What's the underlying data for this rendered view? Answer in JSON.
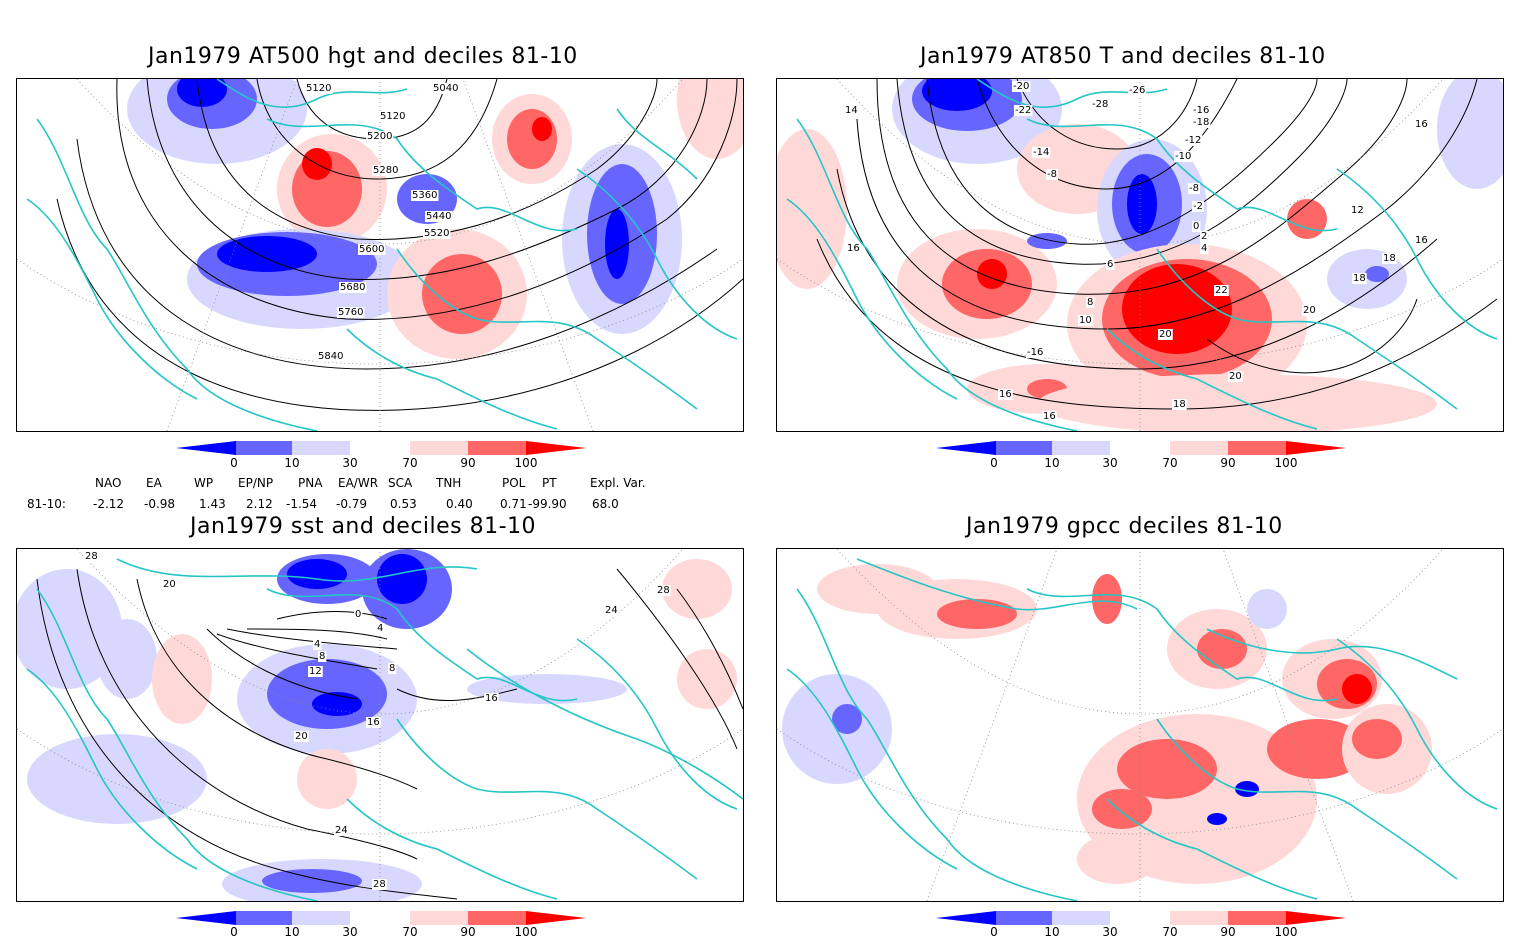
{
  "panels": [
    {
      "title": "Jan1979 AT500 hgt and deciles 81-10",
      "contours": [
        "5040",
        "5120",
        "5120",
        "5200",
        "5280",
        "5360",
        "5440",
        "5520",
        "5600",
        "5680",
        "5760",
        "5840"
      ]
    },
    {
      "title": "Jan1979 AT850 T and deciles 81-10",
      "contours": [
        "-20",
        "-22",
        "-26",
        "-28",
        "-14",
        "-16",
        "-18",
        "-12",
        "-10",
        "-8",
        "-8",
        "-2",
        "0",
        "2",
        "4",
        "6",
        "8",
        "10",
        "12",
        "14",
        "16",
        "16",
        "16",
        "18",
        "18",
        "20",
        "20",
        "22",
        "-16",
        "16",
        "16",
        "18",
        "20"
      ]
    },
    {
      "title": "Jan1979 sst and deciles 81-10",
      "contours": [
        "28",
        "20",
        "0",
        "4",
        "4",
        "8",
        "8",
        "12",
        "16",
        "16",
        "20",
        "24",
        "24",
        "28",
        "28"
      ]
    },
    {
      "title": "Jan1979 gpcc deciles 81-10",
      "contours": []
    }
  ],
  "colorbar": {
    "ticks": [
      "0",
      "10",
      "30",
      "70",
      "90",
      "100"
    ],
    "colors": [
      "#0000ff",
      "#6666ff",
      "#d8d8ff",
      "#ffffff",
      "#ffd8d8",
      "#ff6666",
      "#ff0000"
    ]
  },
  "indices": {
    "row_label": "81-10:",
    "names": [
      "NAO",
      "EA",
      "WP",
      "EP/NP",
      "PNA",
      "EA/WR",
      "SCA",
      "TNH",
      "POL",
      "PT",
      "Expl. Var."
    ],
    "values": [
      "-2.12",
      "-0.98",
      "1.43",
      "2.12",
      "-1.54",
      "-0.79",
      "0.53",
      "0.40",
      "0.71",
      "-99.90",
      "68.0"
    ]
  }
}
